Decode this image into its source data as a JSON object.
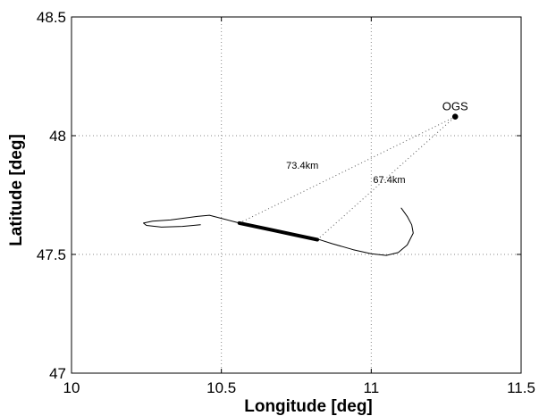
{
  "chart_data": {
    "type": "line",
    "xlabel": "Longitude [deg]",
    "ylabel": "Latitude [deg]",
    "xlim": [
      10,
      11.5
    ],
    "ylim": [
      47,
      48.5
    ],
    "xticks": [
      10,
      10.5,
      11,
      11.5
    ],
    "yticks": [
      47,
      47.5,
      48,
      48.5
    ],
    "xtick_labels": [
      "10",
      "10.5",
      "11",
      "11.5"
    ],
    "ytick_labels": [
      "47",
      "47.5",
      "48",
      "48.5"
    ],
    "grid": true,
    "grid_lines": {
      "x": [
        10.5,
        11
      ],
      "y": [
        47.5,
        48
      ]
    },
    "series": [
      {
        "style": "thin",
        "x": [
          10.43,
          10.37,
          10.3,
          10.25,
          10.24,
          10.27,
          10.33,
          10.42,
          10.46,
          10.5,
          10.56,
          10.65,
          10.75,
          10.82,
          10.87,
          10.94,
          11.0,
          11.05,
          11.09,
          11.12,
          11.14,
          11.135,
          11.12,
          11.1
        ],
        "y": [
          47.625,
          47.618,
          47.615,
          47.622,
          47.632,
          47.64,
          47.645,
          47.66,
          47.665,
          47.652,
          47.632,
          47.61,
          47.585,
          47.565,
          47.545,
          47.52,
          47.503,
          47.496,
          47.508,
          47.54,
          47.59,
          47.625,
          47.66,
          47.695
        ]
      },
      {
        "style": "thick",
        "x": [
          10.56,
          10.68,
          10.82
        ],
        "y": [
          47.632,
          47.6,
          47.562
        ]
      }
    ],
    "annotations": [
      {
        "kind": "marker",
        "label": "OGS",
        "x": 11.28,
        "y": 48.08
      },
      {
        "kind": "dotted-line",
        "label": "73.4km",
        "from": [
          10.56,
          47.632
        ],
        "to": [
          11.28,
          48.08
        ],
        "label_at": [
          10.77,
          47.86
        ]
      },
      {
        "kind": "dotted-line",
        "label": "67.4km",
        "from": [
          10.82,
          47.562
        ],
        "to": [
          11.28,
          48.08
        ],
        "label_at": [
          11.06,
          47.8
        ]
      }
    ],
    "colors": {
      "line": "#000000",
      "grid": "#8a8a8a",
      "axes": "#000000",
      "background": "#ffffff"
    }
  }
}
